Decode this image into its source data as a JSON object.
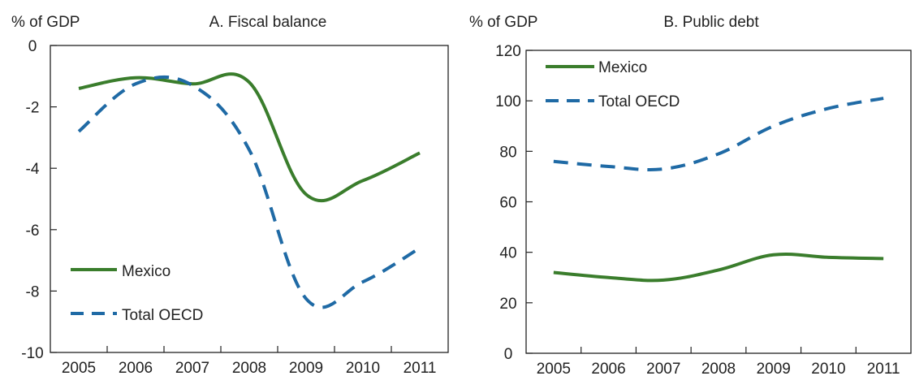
{
  "colors": {
    "mexico": "#3a7d2c",
    "oecd": "#1f6aa5",
    "axis": "#222222"
  },
  "chart_data": [
    {
      "type": "line",
      "title": "A. Fiscal balance",
      "ylabel": "% of GDP",
      "xlabel": "",
      "x": [
        "2005",
        "2006",
        "2007",
        "2008",
        "2009",
        "2010",
        "2011"
      ],
      "ylim": [
        -10,
        0
      ],
      "yticks": [
        "0",
        "-2",
        "-4",
        "-6",
        "-8",
        "-10"
      ],
      "legend_placement": "bottom-left",
      "grid": false,
      "series": [
        {
          "name": "Mexico",
          "style": "solid",
          "values": [
            -1.4,
            -1.05,
            -1.25,
            -1.2,
            -4.85,
            -4.4,
            -3.5
          ]
        },
        {
          "name": "Total OECD",
          "style": "dashed",
          "values": [
            -2.8,
            -1.25,
            -1.3,
            -3.4,
            -8.25,
            -7.7,
            -6.6
          ]
        }
      ]
    },
    {
      "type": "line",
      "title": "B. Public debt",
      "ylabel": "% of GDP",
      "xlabel": "",
      "x": [
        "2005",
        "2006",
        "2007",
        "2008",
        "2009",
        "2010",
        "2011"
      ],
      "ylim": [
        0,
        120
      ],
      "yticks": [
        "120",
        "100",
        "80",
        "60",
        "40",
        "20",
        "0"
      ],
      "legend_placement": "top-left",
      "grid": false,
      "series": [
        {
          "name": "Mexico",
          "style": "solid",
          "values": [
            32,
            30,
            29,
            33,
            39,
            38,
            37.5
          ]
        },
        {
          "name": "Total OECD",
          "style": "dashed",
          "values": [
            76,
            74,
            73,
            79,
            90,
            97,
            101
          ]
        }
      ]
    }
  ]
}
